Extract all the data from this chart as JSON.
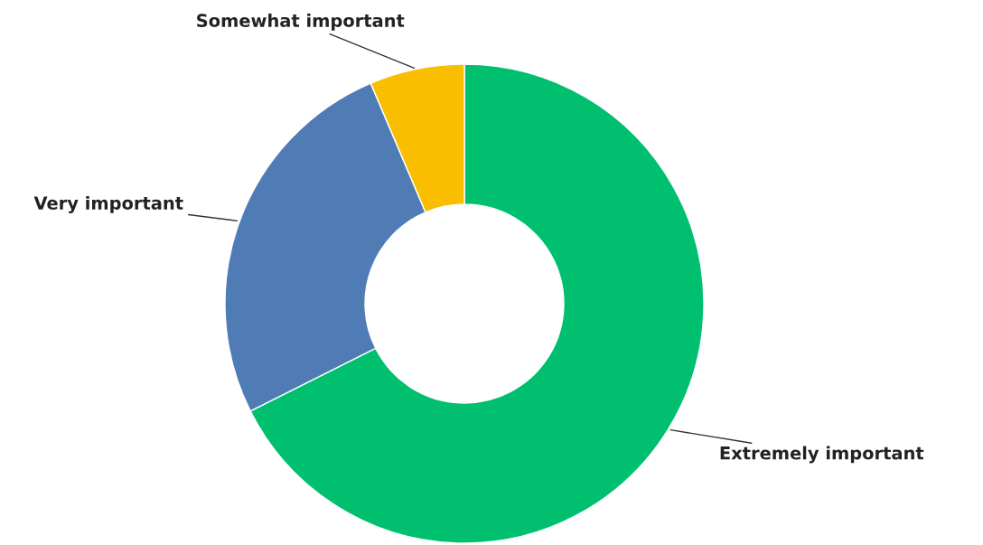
{
  "chart_data": {
    "type": "donut",
    "categories": [
      "Extremely important",
      "Very important",
      "Somewhat important"
    ],
    "values": [
      67.6,
      26.0,
      6.4
    ],
    "colors": [
      "#00bf6f",
      "#507cb6",
      "#f9be00"
    ],
    "legend": false
  }
}
